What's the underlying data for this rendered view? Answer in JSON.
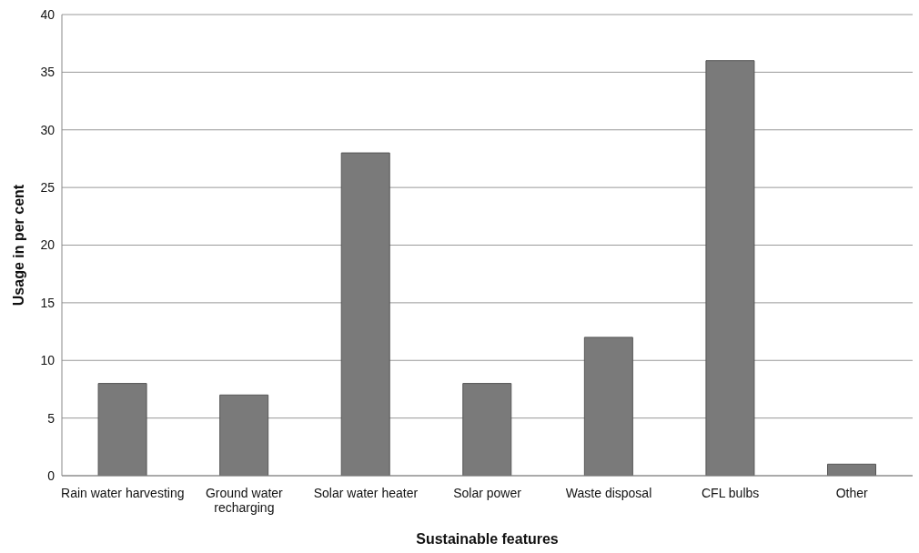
{
  "chart_data": {
    "type": "bar",
    "xlabel": "Sustainable features",
    "ylabel": "Usage in per cent",
    "categories": [
      "Rain water harvesting",
      "Ground water recharging",
      "Solar water heater",
      "Solar power",
      "Waste disposal",
      "CFL bulbs",
      "Other"
    ],
    "values": [
      8,
      7,
      28,
      8,
      12,
      36,
      1
    ],
    "color": "#7a7a7a",
    "ylim": [
      0,
      40
    ],
    "yticks": [
      0,
      5,
      10,
      15,
      20,
      25,
      30,
      35,
      40
    ],
    "grid": "y"
  }
}
